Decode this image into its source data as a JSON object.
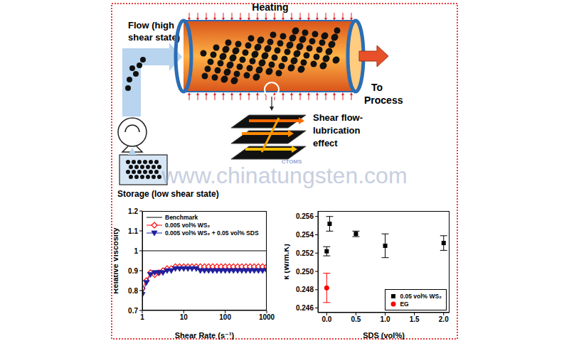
{
  "diagram": {
    "heating": "Heating",
    "flow": [
      "Flow (high",
      "shear state)"
    ],
    "to_process": [
      "To",
      "Process"
    ],
    "shear_effect": [
      "Shear flow-",
      "lubrication",
      "effect"
    ],
    "storage": "Storage (low shear state)",
    "watermark": "www.chinatungsten.com",
    "logo": "CTOMS"
  },
  "chart_data": [
    {
      "type": "line",
      "x_label": "Shear Rate (s⁻¹)",
      "y_label": "Relative Viscosity",
      "log": "x",
      "xlim": [
        1,
        1000
      ],
      "xticks": [
        1,
        10,
        100,
        1000
      ],
      "ylim": [
        0.7,
        1.2
      ],
      "yticks": [
        0.7,
        0.8,
        0.9,
        1,
        1.1,
        1.2
      ],
      "legend": "top-left",
      "series": [
        {
          "name": "Benchmark",
          "color": "#000000",
          "marker": "none",
          "x": [
            1,
            1000
          ],
          "values": [
            1,
            1
          ]
        },
        {
          "name": "0.005 vol% WS₂",
          "color": "#ff0000",
          "marker": "diamond",
          "x": [
            1,
            1.26,
            1.58,
            2,
            2.51,
            3.16,
            3.98,
            5.01,
            6.31,
            7.94,
            10,
            12.6,
            15.8,
            20,
            25.1,
            31.6,
            39.8,
            50.1,
            63.1,
            79.4,
            100,
            126,
            158,
            200,
            251,
            316,
            398,
            501,
            631,
            794,
            1000
          ],
          "values": [
            0.81,
            0.85,
            0.89,
            0.88,
            0.89,
            0.9,
            0.91,
            0.91,
            0.92,
            0.92,
            0.92,
            0.92,
            0.92,
            0.92,
            0.92,
            0.92,
            0.92,
            0.92,
            0.92,
            0.92,
            0.92,
            0.92,
            0.92,
            0.92,
            0.92,
            0.92,
            0.92,
            0.92,
            0.92,
            0.92,
            0.92
          ]
        },
        {
          "name": "0.005 vol% WS₂ + 0.05 vol% SDS",
          "color": "#1f1f9e",
          "marker": "triangle-down",
          "x": [
            1,
            1.26,
            1.58,
            2,
            2.51,
            3.16,
            3.98,
            5.01,
            6.31,
            7.94,
            10,
            12.6,
            15.8,
            20,
            25.1,
            31.6,
            39.8,
            50.1,
            63.1,
            79.4,
            100,
            126,
            158,
            200,
            251,
            316,
            398,
            501,
            631,
            794,
            1000
          ],
          "values": [
            0.78,
            0.84,
            0.88,
            0.89,
            0.89,
            0.89,
            0.9,
            0.9,
            0.91,
            0.91,
            0.91,
            0.91,
            0.91,
            0.91,
            0.9,
            0.9,
            0.9,
            0.9,
            0.9,
            0.9,
            0.9,
            0.9,
            0.9,
            0.9,
            0.9,
            0.9,
            0.9,
            0.9,
            0.9,
            0.9,
            0.9
          ]
        }
      ]
    },
    {
      "type": "scatter",
      "x_label": "SDS (vol%)",
      "y_label": "k (W/m.K)",
      "xlim": [
        -0.15,
        2.1
      ],
      "xticks": [
        {
          "value": 0,
          "label": "0.0"
        },
        0.5,
        {
          "value": 1,
          "label": "1.0"
        },
        1.5,
        {
          "value": 2,
          "label": "2.0"
        }
      ],
      "ylim": [
        0.2455,
        0.2566
      ],
      "yticks": [
        0.246,
        0.248,
        {
          "value": 0.25,
          "label": "0.250"
        },
        0.252,
        0.254,
        0.256
      ],
      "legend": "bottom-right",
      "series": [
        {
          "name": "0.05 vol% WS₂",
          "color": "#000000",
          "marker": "square",
          "x": [
            0,
            0.05,
            0.5,
            1,
            2
          ],
          "values": [
            0.2522,
            0.2552,
            0.2541,
            0.2528,
            0.2531
          ],
          "errors": [
            0.0005,
            0.0008,
            0.0003,
            0.0013,
            0.0008
          ]
        },
        {
          "name": "EG",
          "color": "#ff0000",
          "marker": "circle",
          "x": [
            0
          ],
          "values": [
            0.2482
          ],
          "errors": [
            0.0016
          ]
        }
      ]
    }
  ]
}
